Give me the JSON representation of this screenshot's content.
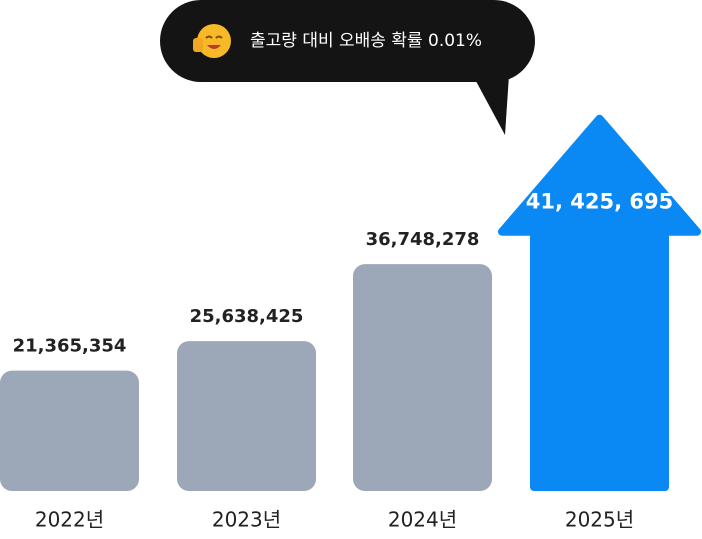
{
  "chart_data": {
    "type": "bar",
    "annotation": "출고량 대비 오배송 확률 0.01%",
    "categories": [
      "2022년",
      "2023년",
      "2024년",
      "2025년"
    ],
    "values": [
      21365354,
      25638425,
      36748278,
      41425695
    ],
    "value_labels": [
      "21,365,354",
      "25,638,425",
      "36,748,278",
      "41, 425, 695"
    ],
    "colors": [
      "#9ca7b8",
      "#9ca7b8",
      "#9ca7b8",
      "#0a88f4"
    ],
    "ylim": [
      4000000,
      60000000
    ]
  }
}
